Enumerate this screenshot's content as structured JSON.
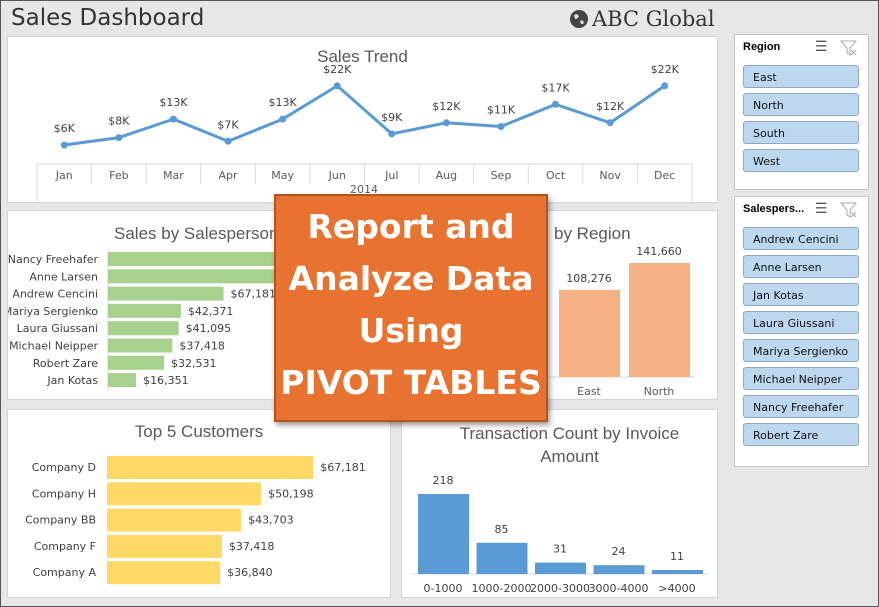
{
  "header": {
    "title": "Sales Dashboard",
    "brand": "ABC Global",
    "brand_icon": "globe-icon"
  },
  "colors": {
    "line": "#5b9bd5",
    "salesperson_bar": "#a9d18e",
    "region_bar": "#f4b183",
    "customer_bar": "#ffd966",
    "txn_bar": "#5b9bd5",
    "overlay": "#e8722f",
    "slicer_item": "#bdd7ee"
  },
  "overlay": {
    "lines": [
      "Report and",
      "Analyze Data",
      "Using",
      "PIVOT TABLES"
    ]
  },
  "chart_data": [
    {
      "type": "line",
      "title": "Sales Trend",
      "categories": [
        "Jan",
        "Feb",
        "Mar",
        "Apr",
        "May",
        "Jun",
        "Jul",
        "Aug",
        "Sep",
        "Oct",
        "Nov",
        "Dec"
      ],
      "values": [
        6,
        8,
        13,
        7,
        13,
        22,
        9,
        12,
        11,
        17,
        12,
        22
      ],
      "labels": [
        "$6K",
        "$8K",
        "$13K",
        "$7K",
        "$13K",
        "$22K",
        "$9K",
        "$12K",
        "$11K",
        "$17K",
        "$12K",
        "$22K"
      ],
      "group_label": "2014",
      "unit": "$K"
    },
    {
      "type": "bar",
      "title": "Sales by Salesperson",
      "categories": [
        "Nancy Freehafer",
        "Anne Larsen",
        "Andrew Cencini",
        "Mariya Sergienko",
        "Laura Giussani",
        "Michael Neipper",
        "Robert Zare",
        "Jan Kotas"
      ],
      "values": [
        null,
        null,
        67181,
        42371,
        41095,
        37418,
        32531,
        16351
      ],
      "labels": [
        "",
        "",
        "$67,181",
        "$42,371",
        "$41,095",
        "$37,418",
        "$32,531",
        "$16,351"
      ]
    },
    {
      "type": "bar",
      "title": "by Region",
      "categories": [
        "East",
        "North"
      ],
      "values": [
        108276,
        141660
      ],
      "labels": [
        "108,276",
        "141,660"
      ]
    },
    {
      "type": "bar",
      "title": "Top 5 Customers",
      "categories": [
        "Company D",
        "Company H",
        "Company BB",
        "Company F",
        "Company A"
      ],
      "values": [
        67181,
        50198,
        43703,
        37418,
        36840
      ],
      "labels": [
        "$67,181",
        "$50,198",
        "$43,703",
        "$37,418",
        "$36,840"
      ]
    },
    {
      "type": "bar",
      "title": "Transaction Count by Invoice Amount",
      "categories": [
        "0-1000",
        "1000-2000",
        "2000-3000",
        "3000-4000",
        ">4000"
      ],
      "values": [
        218,
        85,
        31,
        24,
        11
      ],
      "labels": [
        "218",
        "85",
        "31",
        "24",
        "11"
      ]
    }
  ],
  "slicers": {
    "region": {
      "title": "Region",
      "items": [
        "East",
        "North",
        "South",
        "West"
      ]
    },
    "salesperson": {
      "title": "Salespers...",
      "items": [
        "Andrew Cencini",
        "Anne Larsen",
        "Jan Kotas",
        "Laura Giussani",
        "Mariya Sergienko",
        "Michael Neipper",
        "Nancy Freehafer",
        "Robert Zare"
      ]
    }
  }
}
